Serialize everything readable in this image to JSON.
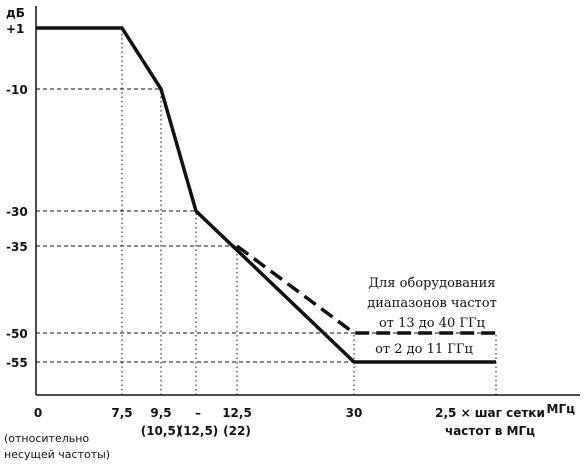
{
  "chart_data": {
    "type": "line",
    "y_unit": "дБ",
    "x_unit": "МГц",
    "y_ticks": [
      {
        "label": "+1",
        "value": 1
      },
      {
        "label": "-10",
        "value": -10
      },
      {
        "label": "-30",
        "value": -30
      },
      {
        "label": "-35",
        "value": -35
      },
      {
        "label": "-50",
        "value": -50
      },
      {
        "label": "-55",
        "value": -55
      }
    ],
    "x_ticks": [
      {
        "id": "x0",
        "label": "0",
        "sub": "",
        "value": 0
      },
      {
        "id": "x75",
        "label": "7,5",
        "sub": "",
        "value": 7.5
      },
      {
        "id": "x95",
        "label": "9,5",
        "sub": "(10,5)",
        "value": 9.5
      },
      {
        "id": "xdash",
        "label": "–",
        "sub": "(12,5)",
        "value": 11
      },
      {
        "id": "x125",
        "label": "12,5",
        "sub": "(22)",
        "value": 12.5
      },
      {
        "id": "x30",
        "label": "30",
        "sub": "",
        "value": 30
      },
      {
        "id": "xend",
        "label": "2,5 × шаг сетки",
        "sub": "частот в  МГц",
        "value": 40
      }
    ],
    "x_origin_note": [
      "(относительно",
      "несущей частоты)"
    ],
    "series": [
      {
        "name": "от 2 до 11 ГГц",
        "style": "solid",
        "points": [
          [
            0,
            1
          ],
          [
            7.5,
            1
          ],
          [
            9.5,
            -10
          ],
          [
            11,
            -30
          ],
          [
            30,
            -55
          ],
          [
            40,
            -55
          ]
        ]
      },
      {
        "name": "Для оборудования диапазонов частот от 13 до 40 ГГц",
        "style": "dashed",
        "points": [
          [
            12.5,
            -35
          ],
          [
            30,
            -50
          ],
          [
            40,
            -50
          ]
        ]
      }
    ],
    "annotations": [
      {
        "id": "band_high",
        "lines": [
          "Для оборудования",
          "диапазонов частот",
          "от 13 до 40 ГГц"
        ]
      },
      {
        "id": "band_low",
        "lines": [
          "от 2 до 11 ГГц"
        ]
      }
    ],
    "grid": "dotted/dashed reference lines",
    "colors": {
      "line": "#111111",
      "grid": "#111111",
      "background": "#ffffff"
    }
  }
}
